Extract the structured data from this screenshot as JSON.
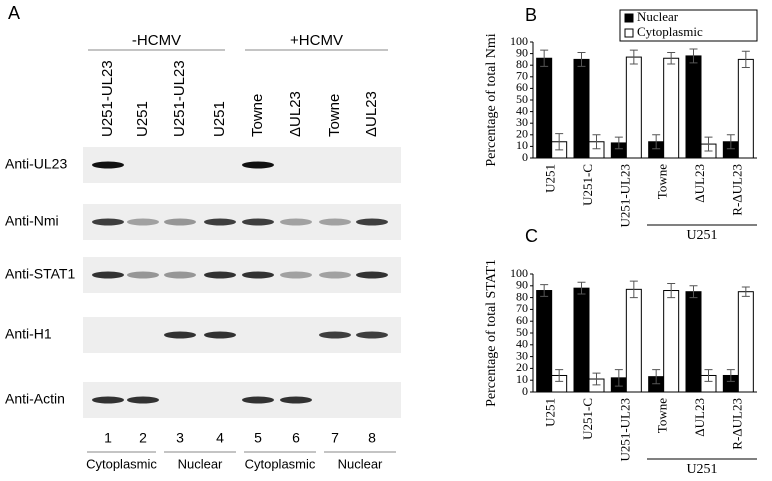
{
  "figure": {
    "blot": {
      "panel_label": "A",
      "groups": [
        "-HCMV",
        "+HCMV"
      ],
      "lanes": [
        "U251-UL23",
        "U251",
        "U251-UL23",
        "U251",
        "Towne",
        "ΔUL23",
        "Towne",
        "ΔUL23"
      ],
      "lane_numbers": [
        1,
        2,
        3,
        4,
        5,
        6,
        7,
        8
      ],
      "rows": [
        "Anti-UL23",
        "Anti-Nmi",
        "Anti-STAT1",
        "Anti-H1",
        "Anti-Actin"
      ],
      "fractions": [
        "Cytoplasmic",
        "Nuclear",
        "Cytoplasmic",
        "Nuclear"
      ]
    }
  },
  "chart_data": [
    {
      "type": "bar",
      "panel_label": "B",
      "ylabel": "Percentage of total Nmi",
      "categories": [
        "U251",
        "U251-C",
        "U251-UL23",
        "Towne",
        "ΔUL23",
        "R-ΔUL23"
      ],
      "group_label": "U251",
      "series": [
        {
          "name": "Nuclear",
          "color": "#000000",
          "values": [
            86,
            85,
            13,
            14,
            88,
            14
          ],
          "errors": [
            7,
            6,
            5,
            6,
            6,
            6
          ]
        },
        {
          "name": "Cytoplasmic",
          "color": "#ffffff",
          "values": [
            14,
            14,
            87,
            86,
            12,
            85
          ],
          "errors": [
            7,
            6,
            6,
            5,
            6,
            7
          ]
        }
      ],
      "ylim": [
        0,
        100
      ],
      "yticks": [
        0,
        10,
        20,
        30,
        40,
        50,
        60,
        70,
        80,
        90,
        100
      ],
      "legend": "top-right"
    },
    {
      "type": "bar",
      "panel_label": "C",
      "ylabel": "Percentage of total STAT1",
      "categories": [
        "U251",
        "U251-C",
        "U251-UL23",
        "Towne",
        "ΔUL23",
        "R-ΔUL23"
      ],
      "group_label": "U251",
      "series": [
        {
          "color": "#000000",
          "values": [
            86,
            88,
            12,
            13,
            85,
            14
          ],
          "errors": [
            5,
            5,
            7,
            6,
            5,
            5
          ]
        },
        {
          "color": "#ffffff",
          "values": [
            14,
            11,
            87,
            86,
            14,
            85
          ],
          "errors": [
            5,
            5,
            7,
            6,
            5,
            4
          ]
        }
      ],
      "ylim": [
        0,
        100
      ],
      "yticks": [
        0,
        10,
        20,
        30,
        40,
        50,
        60,
        70,
        80,
        90,
        100
      ]
    }
  ]
}
